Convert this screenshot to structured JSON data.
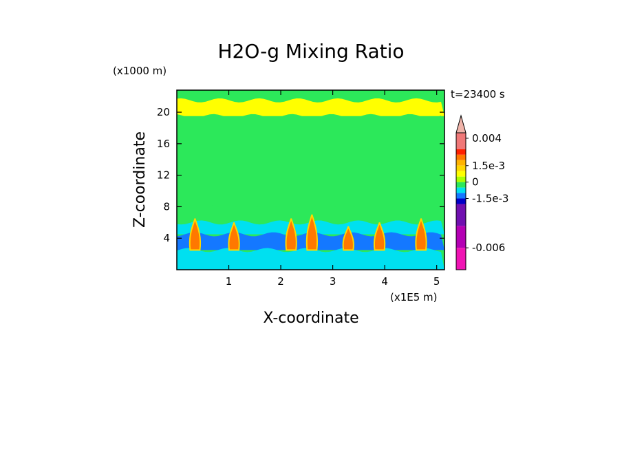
{
  "chart_data": {
    "type": "heatmap",
    "title": "H2O-g Mixing Ratio",
    "time_label": "t=23400 s",
    "xlabel": "X-coordinate",
    "ylabel": "Z-coordinate",
    "x_unit": "(x1E5 m)",
    "y_unit": "(x1000 m)",
    "xlim": [
      0,
      5.15
    ],
    "ylim": [
      0,
      22.8
    ],
    "x_ticks": [
      {
        "value": 1,
        "label": "1"
      },
      {
        "value": 2,
        "label": "2"
      },
      {
        "value": 3,
        "label": "3"
      },
      {
        "value": 4,
        "label": "4"
      },
      {
        "value": 5,
        "label": "5"
      }
    ],
    "y_ticks": [
      {
        "value": 4,
        "label": "4"
      },
      {
        "value": 8,
        "label": "8"
      },
      {
        "value": 12,
        "label": "12"
      },
      {
        "value": 16,
        "label": "16"
      },
      {
        "value": 20,
        "label": "20"
      }
    ],
    "colorbar": {
      "lim": [
        -0.008,
        0.0045
      ],
      "tick_labels": [
        {
          "value": 0.004,
          "label": "0.004"
        },
        {
          "value": 0.0015,
          "label": "1.5e-3"
        },
        {
          "value": 0,
          "label": "0"
        },
        {
          "value": -0.0015,
          "label": "-1.5e-3"
        },
        {
          "value": -0.006,
          "label": "-0.006"
        }
      ],
      "bins": [
        {
          "from": 0.0045,
          "to": 0.005,
          "color": "#f0b4aa",
          "arrow": true
        },
        {
          "from": 0.003,
          "to": 0.0045,
          "color": "#f07878"
        },
        {
          "from": 0.0025,
          "to": 0.003,
          "color": "#ff2000"
        },
        {
          "from": 0.002,
          "to": 0.0025,
          "color": "#ff7800"
        },
        {
          "from": 0.0015,
          "to": 0.002,
          "color": "#ffb400"
        },
        {
          "from": 0.001,
          "to": 0.0015,
          "color": "#ffd700"
        },
        {
          "from": 0.0005,
          "to": 0.001,
          "color": "#ffff00"
        },
        {
          "from": 0,
          "to": 0.0005,
          "color": "#aaff00"
        },
        {
          "from": -0.0005,
          "to": 0,
          "color": "#2ce85a"
        },
        {
          "from": -0.001,
          "to": -0.0005,
          "color": "#00e0f0"
        },
        {
          "from": -0.0015,
          "to": -0.001,
          "color": "#1478ff"
        },
        {
          "from": -0.002,
          "to": -0.0015,
          "color": "#0000c8"
        },
        {
          "from": -0.004,
          "to": -0.002,
          "color": "#7010b0"
        },
        {
          "from": -0.006,
          "to": -0.004,
          "color": "#b400b4"
        },
        {
          "from": -0.008,
          "to": -0.006,
          "color": "#f014b4"
        }
      ]
    },
    "field_bands": [
      {
        "z_from": 21.5,
        "z_to": 22.8,
        "color": "#2ce85a"
      },
      {
        "z_from": 19.5,
        "z_to": 21.5,
        "color": "#ffff00"
      },
      {
        "z_from": 8.0,
        "z_to": 19.5,
        "color": "#2ce85a"
      },
      {
        "z_from": 6.0,
        "z_to": 8.0,
        "color": "#2ce85a"
      },
      {
        "z_from": 4.5,
        "z_to": 6.0,
        "color": "#00e0f0"
      },
      {
        "z_from": 2.5,
        "z_to": 4.5,
        "color": "#1478ff"
      },
      {
        "z_from": 0.0,
        "z_to": 2.5,
        "color": "#00e0f0"
      }
    ],
    "plumes": [
      {
        "x": 0.35,
        "z_top": 6.5,
        "color": "#ff7800"
      },
      {
        "x": 1.1,
        "z_top": 6.0,
        "color": "#ff7800"
      },
      {
        "x": 2.2,
        "z_top": 6.5,
        "color": "#ff7800"
      },
      {
        "x": 2.6,
        "z_top": 7.0,
        "color": "#ff7800"
      },
      {
        "x": 3.3,
        "z_top": 5.5,
        "color": "#ff7800"
      },
      {
        "x": 3.9,
        "z_top": 6.0,
        "color": "#ff7800"
      },
      {
        "x": 4.7,
        "z_top": 6.5,
        "color": "#ff7800"
      }
    ]
  }
}
